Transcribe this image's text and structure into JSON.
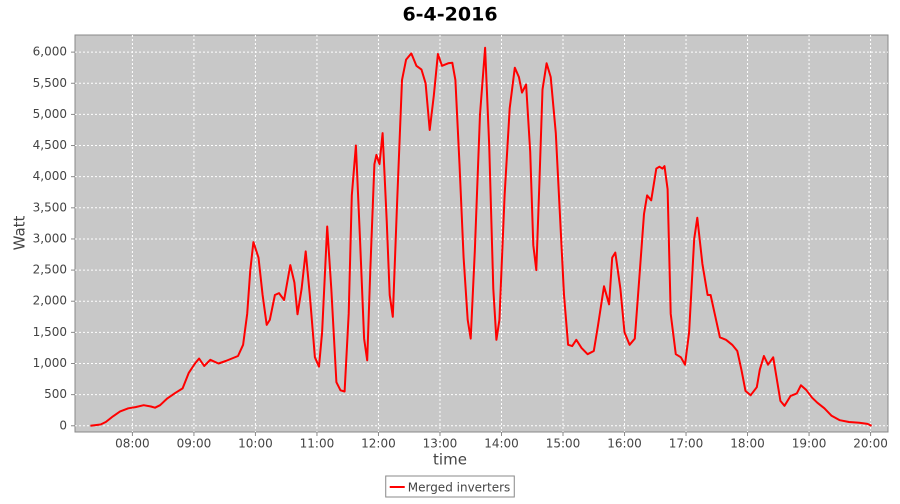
{
  "chart_data": {
    "type": "line",
    "title": "6-4-2016",
    "x_label": "time",
    "y_label": "Watt",
    "xlim": [
      "07:04",
      "20:17"
    ],
    "xticks": [
      "08:00",
      "09:00",
      "10:00",
      "11:00",
      "12:00",
      "13:00",
      "14:00",
      "15:00",
      "16:00",
      "17:00",
      "18:00",
      "19:00",
      "20:00"
    ],
    "ylim": [
      -100,
      6275
    ],
    "yticks": [
      0,
      500,
      {
        "value": 1000,
        "label": "1,000"
      },
      {
        "value": 1500,
        "label": "1,500"
      },
      {
        "value": 2000,
        "label": "2,000"
      },
      {
        "value": 2500,
        "label": "2,500"
      },
      {
        "value": 3000,
        "label": "3,000"
      },
      {
        "value": 3500,
        "label": "3,500"
      },
      {
        "value": 4000,
        "label": "4,000"
      },
      {
        "value": 4500,
        "label": "4,500"
      },
      {
        "value": 5000,
        "label": "5,000"
      },
      {
        "value": 5500,
        "label": "5,500"
      },
      {
        "value": 6000,
        "label": "6,000"
      }
    ],
    "grid": true,
    "legend": "bottom",
    "x": [
      "07:19",
      "07:29",
      "07:34",
      "07:41",
      "07:48",
      "07:56",
      "08:03",
      "08:11",
      "08:18",
      "08:22",
      "08:27",
      "08:34",
      "08:42",
      "08:49",
      "08:55",
      "09:01",
      "09:05",
      "09:10",
      "09:16",
      "09:24",
      "09:31",
      "09:37",
      "09:43",
      "09:48",
      "09:52",
      "09:55",
      "09:58",
      "10:03",
      "10:07",
      "10:11",
      "10:14",
      "10:19",
      "10:23",
      "10:28",
      "10:34",
      "10:38",
      "10:41",
      "10:45",
      "10:49",
      "10:53",
      "10:58",
      "11:02",
      "11:05",
      "11:10",
      "11:14",
      "11:19",
      "11:23",
      "11:27",
      "11:31",
      "11:34",
      "11:38",
      "11:42",
      "11:46",
      "11:49",
      "11:52",
      "11:56",
      "11:58",
      "12:01",
      "12:04",
      "12:08",
      "12:11",
      "12:14",
      "12:18",
      "12:23",
      "12:27",
      "12:32",
      "12:37",
      "12:42",
      "12:46",
      "12:50",
      "12:54",
      "12:58",
      "13:02",
      "13:08",
      "13:12",
      "13:15",
      "13:19",
      "13:23",
      "13:27",
      "13:30",
      "13:34",
      "13:39",
      "13:44",
      "13:48",
      "13:52",
      "13:55",
      "13:58",
      "14:03",
      "14:08",
      "14:13",
      "14:17",
      "14:20",
      "14:24",
      "14:28",
      "14:31",
      "14:34",
      "14:37",
      "14:40",
      "14:44",
      "14:48",
      "14:53",
      "14:57",
      "15:01",
      "15:05",
      "15:09",
      "15:13",
      "15:18",
      "15:24",
      "15:30",
      "15:34",
      "15:40",
      "15:45",
      "15:48",
      "15:51",
      "15:56",
      "16:00",
      "16:05",
      "16:10",
      "16:15",
      "16:19",
      "16:22",
      "16:26",
      "16:31",
      "16:34",
      "16:37",
      "16:39",
      "16:42",
      "16:45",
      "16:50",
      "16:55",
      "16:59",
      "17:03",
      "17:08",
      "17:11",
      "17:16",
      "17:21",
      "17:24",
      "17:28",
      "17:33",
      "17:39",
      "17:45",
      "17:50",
      "17:54",
      "17:58",
      "18:03",
      "18:09",
      "18:12",
      "18:16",
      "18:20",
      "18:25",
      "18:28",
      "18:32",
      "18:36",
      "18:42",
      "18:48",
      "18:52",
      "18:57",
      "19:03",
      "19:08",
      "19:15",
      "19:22",
      "19:30",
      "19:39",
      "19:49",
      "19:57",
      "20:01"
    ],
    "series": [
      {
        "name": "Merged inverters",
        "color": "#ff0000",
        "values": [
          0,
          20,
          60,
          150,
          230,
          280,
          300,
          330,
          310,
          290,
          330,
          440,
          530,
          600,
          850,
          1000,
          1080,
          960,
          1060,
          1000,
          1040,
          1080,
          1120,
          1300,
          1800,
          2500,
          2950,
          2700,
          2100,
          1620,
          1700,
          2100,
          2130,
          2020,
          2580,
          2300,
          1790,
          2200,
          2800,
          2100,
          1100,
          950,
          1500,
          3200,
          2200,
          700,
          570,
          550,
          1800,
          3700,
          4500,
          3000,
          1400,
          1050,
          2500,
          4200,
          4350,
          4200,
          4700,
          3300,
          2100,
          1750,
          3500,
          5550,
          5880,
          5980,
          5780,
          5720,
          5500,
          4750,
          5300,
          5970,
          5780,
          5820,
          5830,
          5550,
          4200,
          2700,
          1700,
          1400,
          2800,
          5000,
          6070,
          4500,
          2200,
          1380,
          1700,
          3700,
          5100,
          5750,
          5600,
          5350,
          5480,
          4400,
          2900,
          2500,
          3900,
          5400,
          5820,
          5600,
          4700,
          3400,
          2100,
          1300,
          1280,
          1380,
          1250,
          1150,
          1200,
          1600,
          2240,
          1950,
          2700,
          2780,
          2200,
          1500,
          1300,
          1400,
          2500,
          3400,
          3700,
          3620,
          4130,
          4160,
          4130,
          4170,
          3800,
          1800,
          1150,
          1100,
          980,
          1500,
          3000,
          3340,
          2600,
          2100,
          2100,
          1800,
          1420,
          1380,
          1300,
          1200,
          900,
          560,
          490,
          620,
          900,
          1120,
          980,
          1100,
          800,
          400,
          320,
          480,
          520,
          650,
          580,
          450,
          370,
          280,
          160,
          90,
          60,
          50,
          30,
          0
        ]
      }
    ]
  }
}
